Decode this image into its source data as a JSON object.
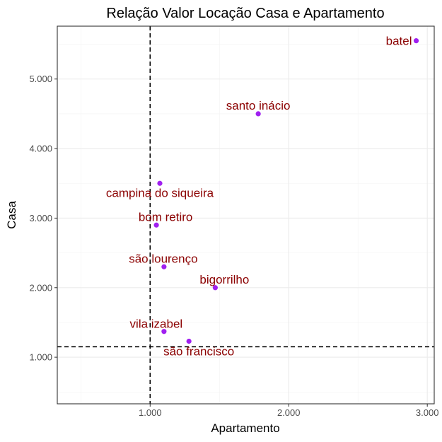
{
  "chart_data": {
    "type": "scatter",
    "title": "Relação Valor Locação Casa e Apartamento",
    "xlabel": "Apartamento",
    "ylabel": "Casa",
    "xlim": [
      330,
      3050
    ],
    "ylim": [
      330,
      5760
    ],
    "x_ticks": [
      1000,
      2000,
      3000
    ],
    "x_tick_labels": [
      "1.000",
      "2.000",
      "3.000"
    ],
    "x_minor_ticks": [
      500,
      1500,
      2500
    ],
    "y_ticks": [
      1000,
      2000,
      3000,
      4000,
      5000
    ],
    "y_tick_labels": [
      "1.000",
      "2.000",
      "3.000",
      "4.000",
      "5.000"
    ],
    "y_minor_ticks": [
      500,
      1500,
      2500,
      3500,
      4500,
      5500
    ],
    "grid": true,
    "point_color": "#a020f0",
    "label_color": "#8b0000",
    "reference_lines": {
      "vertical_x": 1000,
      "horizontal_y": 1150
    },
    "points": [
      {
        "label": "batel",
        "x": 2920,
        "y": 5550
      },
      {
        "label": "santo inácio",
        "x": 1780,
        "y": 4500
      },
      {
        "label": "campina do siqueira",
        "x": 1070,
        "y": 3500
      },
      {
        "label": "bom retiro",
        "x": 1045,
        "y": 2900
      },
      {
        "label": "são lourenço",
        "x": 1100,
        "y": 2300
      },
      {
        "label": "bigorrilho",
        "x": 1470,
        "y": 2000
      },
      {
        "label": "vila izabel",
        "x": 1100,
        "y": 1370
      },
      {
        "label": "são francisco",
        "x": 1280,
        "y": 1230
      }
    ]
  }
}
